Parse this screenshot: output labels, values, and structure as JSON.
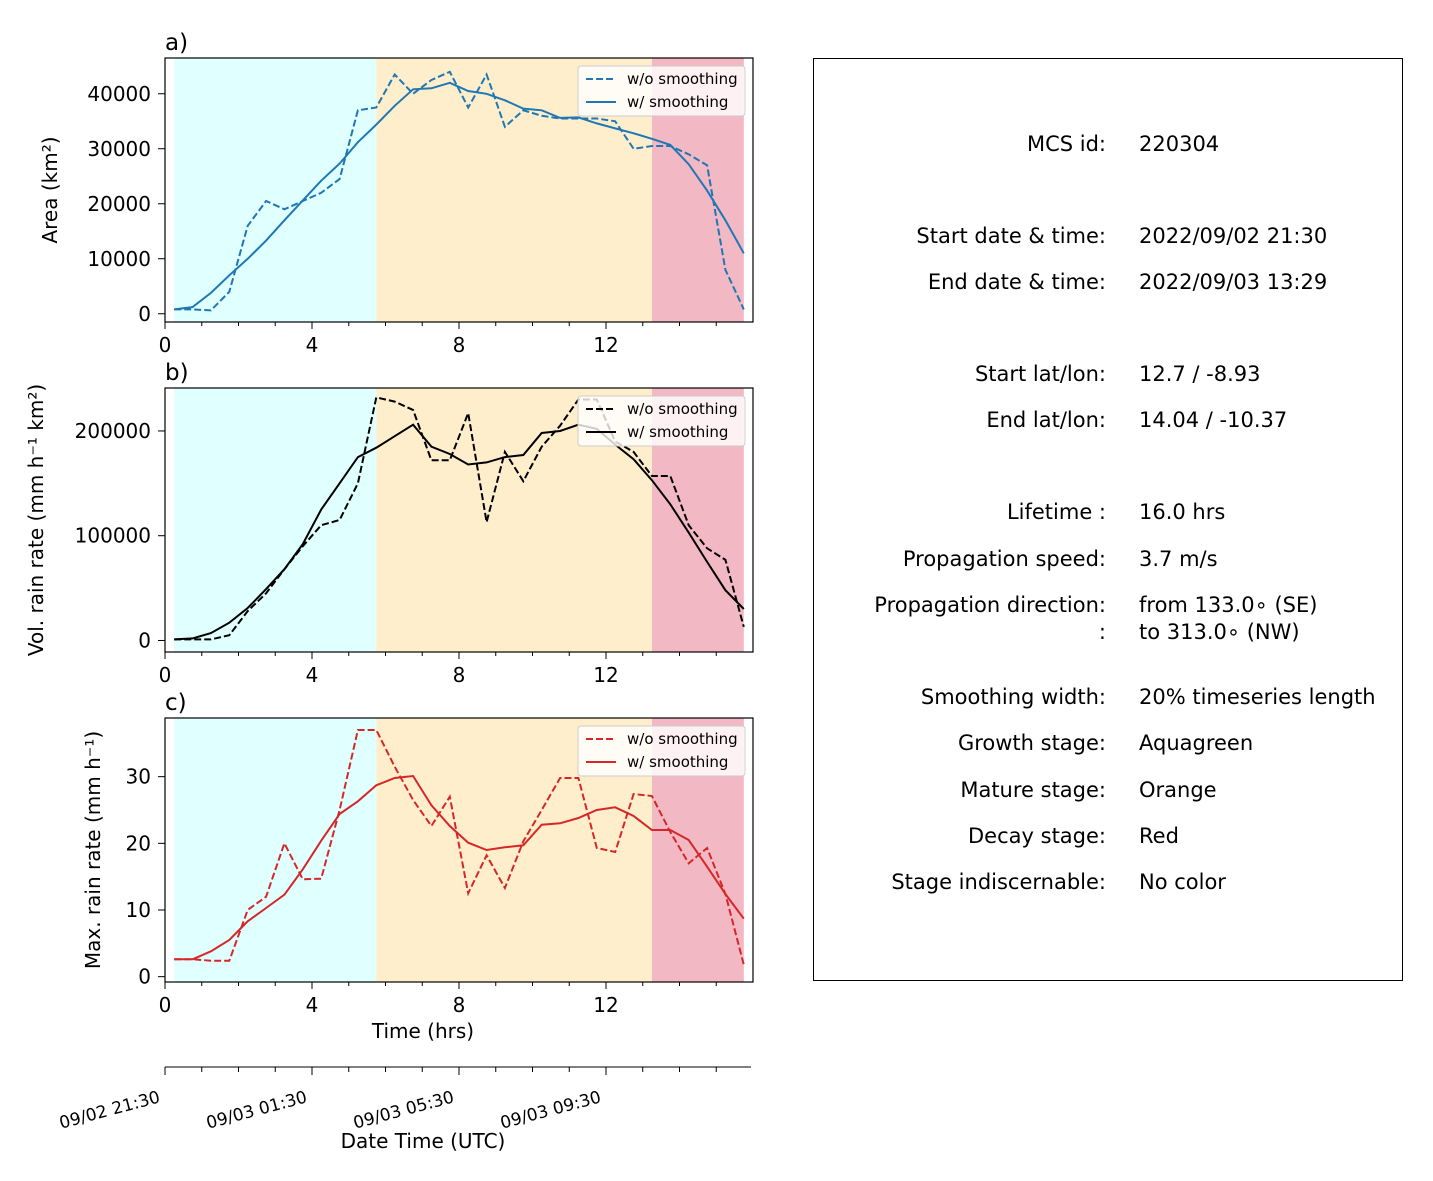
{
  "chart_data": [
    {
      "type": "line",
      "panel_label": "a)",
      "ylabel": "Area  (km²)",
      "xlim": [
        0,
        16
      ],
      "ylim": [
        -1500,
        46500
      ],
      "xticks": [
        0,
        4,
        8,
        12
      ],
      "yticks": [
        0,
        10000,
        20000,
        30000,
        40000
      ],
      "legend_position": "top-right",
      "color": "#1f77b4",
      "series": [
        {
          "name": "w/o smoothing",
          "style": "dashed",
          "x": [
            0.25,
            0.75,
            1.25,
            1.75,
            2.25,
            2.75,
            3.25,
            3.75,
            4.25,
            4.75,
            5.25,
            5.75,
            6.25,
            6.75,
            7.25,
            7.75,
            8.25,
            8.75,
            9.25,
            9.75,
            10.25,
            10.75,
            11.25,
            11.75,
            12.25,
            12.75,
            13.25,
            13.75,
            14.25,
            14.75,
            15.25,
            15.75
          ],
          "y": [
            800,
            800,
            600,
            4000,
            16000,
            20500,
            19000,
            20500,
            22000,
            24500,
            37000,
            37500,
            43500,
            40000,
            42500,
            44000,
            37500,
            43500,
            34000,
            37000,
            36000,
            35500,
            35500,
            35500,
            35000,
            30000,
            30500,
            30500,
            29000,
            27000,
            8000,
            800
          ]
        },
        {
          "name": "w/ smoothing",
          "style": "solid",
          "x": [
            0.25,
            0.75,
            1.25,
            1.75,
            2.25,
            2.75,
            3.25,
            3.75,
            4.25,
            4.75,
            5.25,
            5.75,
            6.25,
            6.75,
            7.25,
            7.75,
            8.25,
            8.75,
            9.25,
            9.75,
            10.25,
            10.75,
            11.25,
            11.75,
            12.25,
            12.75,
            13.25,
            13.75,
            14.25,
            14.75,
            15.25,
            15.75
          ],
          "y": [
            800,
            1200,
            3800,
            7000,
            10000,
            13300,
            17000,
            20600,
            24200,
            27300,
            31200,
            34400,
            37800,
            40800,
            41000,
            42000,
            40500,
            40000,
            38800,
            37300,
            37000,
            35600,
            35700,
            34600,
            33700,
            32800,
            31800,
            30700,
            27200,
            22400,
            17000,
            11000
          ]
        }
      ]
    },
    {
      "type": "line",
      "panel_label": "b)",
      "ylabel": "Vol. rain rate (mm h⁻¹ km²)",
      "xlim": [
        0,
        16
      ],
      "ylim": [
        -11000,
        241000
      ],
      "xticks": [
        0,
        4,
        8,
        12
      ],
      "yticks": [
        0,
        100000,
        200000
      ],
      "legend_position": "top-right",
      "color": "#000000",
      "series": [
        {
          "name": "w/o smoothing",
          "style": "dashed",
          "x": [
            0.25,
            0.75,
            1.25,
            1.75,
            2.25,
            2.75,
            3.25,
            3.75,
            4.25,
            4.75,
            5.25,
            5.75,
            6.25,
            6.75,
            7.25,
            7.75,
            8.25,
            8.75,
            9.25,
            9.75,
            10.25,
            10.75,
            11.25,
            11.75,
            12.25,
            12.75,
            13.25,
            13.75,
            14.25,
            14.75,
            15.25,
            15.75
          ],
          "y": [
            1000,
            1000,
            1000,
            5000,
            28000,
            45000,
            68000,
            90000,
            110000,
            115000,
            150000,
            232000,
            228000,
            220000,
            172000,
            172000,
            217000,
            113000,
            180000,
            152000,
            185000,
            205000,
            230000,
            230000,
            190000,
            180000,
            157000,
            157000,
            110000,
            88000,
            77000,
            13000
          ]
        },
        {
          "name": "w/ smoothing",
          "style": "solid",
          "x": [
            0.25,
            0.75,
            1.25,
            1.75,
            2.25,
            2.75,
            3.25,
            3.75,
            4.25,
            4.75,
            5.25,
            5.75,
            6.25,
            6.75,
            7.25,
            7.75,
            8.25,
            8.75,
            9.25,
            9.75,
            10.25,
            10.75,
            11.25,
            11.75,
            12.25,
            12.75,
            13.25,
            13.75,
            14.25,
            14.75,
            15.25,
            15.75
          ],
          "y": [
            1000,
            2000,
            7000,
            17000,
            31000,
            49000,
            68000,
            92000,
            125000,
            150000,
            175000,
            184000,
            195000,
            206000,
            185000,
            178000,
            168000,
            170000,
            175000,
            177000,
            198000,
            200000,
            206000,
            202000,
            187000,
            173000,
            153000,
            130000,
            103000,
            75000,
            48000,
            30000
          ]
        }
      ]
    },
    {
      "type": "line",
      "panel_label": "c)",
      "ylabel": "Max. rain rate  (mm h⁻¹)",
      "xlabel": "Time (hrs)",
      "xlim": [
        0,
        16
      ],
      "ylim": [
        -0.8,
        38.8
      ],
      "xticks": [
        0,
        4,
        8,
        12
      ],
      "yticks": [
        0,
        10,
        20,
        30
      ],
      "legend_position": "top-right",
      "color": "#d62728",
      "series": [
        {
          "name": "w/o smoothing",
          "style": "dashed",
          "x": [
            0.25,
            0.75,
            1.25,
            1.75,
            2.25,
            2.75,
            3.25,
            3.75,
            4.25,
            4.75,
            5.25,
            5.75,
            6.25,
            6.75,
            7.25,
            7.75,
            8.25,
            8.75,
            9.25,
            9.75,
            10.25,
            10.75,
            11.25,
            11.75,
            12.25,
            12.75,
            13.25,
            13.75,
            14.25,
            14.75,
            15.25,
            15.75
          ],
          "y": [
            2.6,
            2.6,
            2.4,
            2.4,
            10.0,
            12.0,
            20.0,
            14.6,
            14.7,
            25.0,
            37.0,
            37.0,
            31.5,
            26.5,
            22.6,
            27.0,
            12.5,
            18.2,
            13.3,
            20.3,
            25.0,
            29.8,
            29.8,
            19.3,
            18.7,
            27.4,
            27.1,
            21.7,
            17.0,
            19.3,
            12.4,
            1.8
          ]
        },
        {
          "name": "w/ smoothing",
          "style": "solid",
          "x": [
            0.25,
            0.75,
            1.25,
            1.75,
            2.25,
            2.75,
            3.25,
            3.75,
            4.25,
            4.75,
            5.25,
            5.75,
            6.25,
            6.75,
            7.25,
            7.75,
            8.25,
            8.75,
            9.25,
            9.75,
            10.25,
            10.75,
            11.25,
            11.75,
            12.25,
            12.75,
            13.25,
            13.75,
            14.25,
            14.75,
            15.25,
            15.75
          ],
          "y": [
            2.6,
            2.6,
            3.8,
            5.5,
            8.3,
            10.3,
            12.3,
            16.1,
            20.4,
            24.4,
            26.3,
            28.7,
            29.8,
            30.1,
            25.7,
            22.6,
            20.1,
            19.0,
            19.4,
            19.7,
            22.8,
            23.0,
            23.8,
            25.0,
            25.4,
            24.1,
            22.0,
            22.0,
            20.5,
            16.5,
            12.4,
            8.7
          ]
        }
      ]
    }
  ],
  "stages": [
    {
      "name": "Growth",
      "x0": 0.25,
      "x1": 5.75,
      "color": "#e0ffff"
    },
    {
      "name": "Mature",
      "x0": 5.75,
      "x1": 13.25,
      "color": "#ffeecc"
    },
    {
      "name": "Decay",
      "x0": 13.25,
      "x1": 15.75,
      "color": "#f2b8c4"
    }
  ],
  "date_axis": {
    "label": "Date Time (UTC)",
    "ticklabels": [
      "09/02 21:30",
      "09/03 01:30",
      "09/03 05:30",
      "09/03 09:30"
    ],
    "tick_hours": [
      0,
      4,
      8,
      12
    ]
  },
  "info": {
    "rows": [
      {
        "label": "MCS id:",
        "value": "220304"
      },
      {
        "label": "Start date & time:",
        "value": "2022/09/02 21:30"
      },
      {
        "label": "End date & time:",
        "value": "2022/09/03 13:29"
      },
      {
        "label": "Start lat/lon:",
        "value": "12.7 / -8.93"
      },
      {
        "label": "End lat/lon:",
        "value": "14.04 / -10.37"
      },
      {
        "label": "Lifetime :",
        "value": "16.0 hrs"
      },
      {
        "label": "Propagation speed:",
        "value": "3.7 m/s"
      },
      {
        "label": "Propagation direction:",
        "value": "from 133.0∘ (SE)"
      },
      {
        "label": ":",
        "value": "to   313.0∘ (NW)"
      },
      {
        "label": "Smoothing width:",
        "value": "20% timeseries length"
      },
      {
        "label": "Growth stage:",
        "value": "Aquagreen"
      },
      {
        "label": "Mature stage:",
        "value": "Orange"
      },
      {
        "label": "Decay stage:",
        "value": "Red"
      },
      {
        "label": "Stage indiscernable:",
        "value": "No color"
      }
    ]
  }
}
